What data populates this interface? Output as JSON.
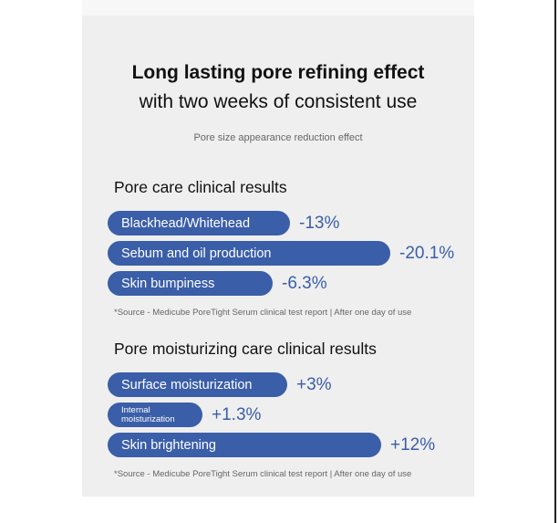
{
  "headline": "Long lasting pore refining effect",
  "subheadline": "with two weeks of consistent use",
  "caption": "Pore size appearance reduction effect",
  "colors": {
    "bar": "#3a5ea8",
    "value_text": "#3a5ea8",
    "panel_background": "#efefef"
  },
  "chart_data": [
    {
      "type": "bar",
      "orientation": "horizontal",
      "title": "Pore care clinical results",
      "categories": [
        "Blackhead/Whitehead",
        "Sebum and oil production",
        "Skin bumpiness"
      ],
      "values": [
        -13,
        -20.1,
        -6.3
      ],
      "value_labels": [
        "-13%",
        "-20.1%",
        "-6.3%"
      ],
      "source": "*Source - Medicube PoreTight Serum clinical test report | After one day of use"
    },
    {
      "type": "bar",
      "orientation": "horizontal",
      "title": "Pore moisturizing care clinical results",
      "categories": [
        "Surface moisturization",
        "Internal moisturization",
        "Skin brightening"
      ],
      "values": [
        3,
        1.3,
        12
      ],
      "value_labels": [
        "+3%",
        "+1.3%",
        "+12%"
      ],
      "source": "*Source - Medicube PoreTight Serum clinical test report | After one day of use"
    }
  ]
}
